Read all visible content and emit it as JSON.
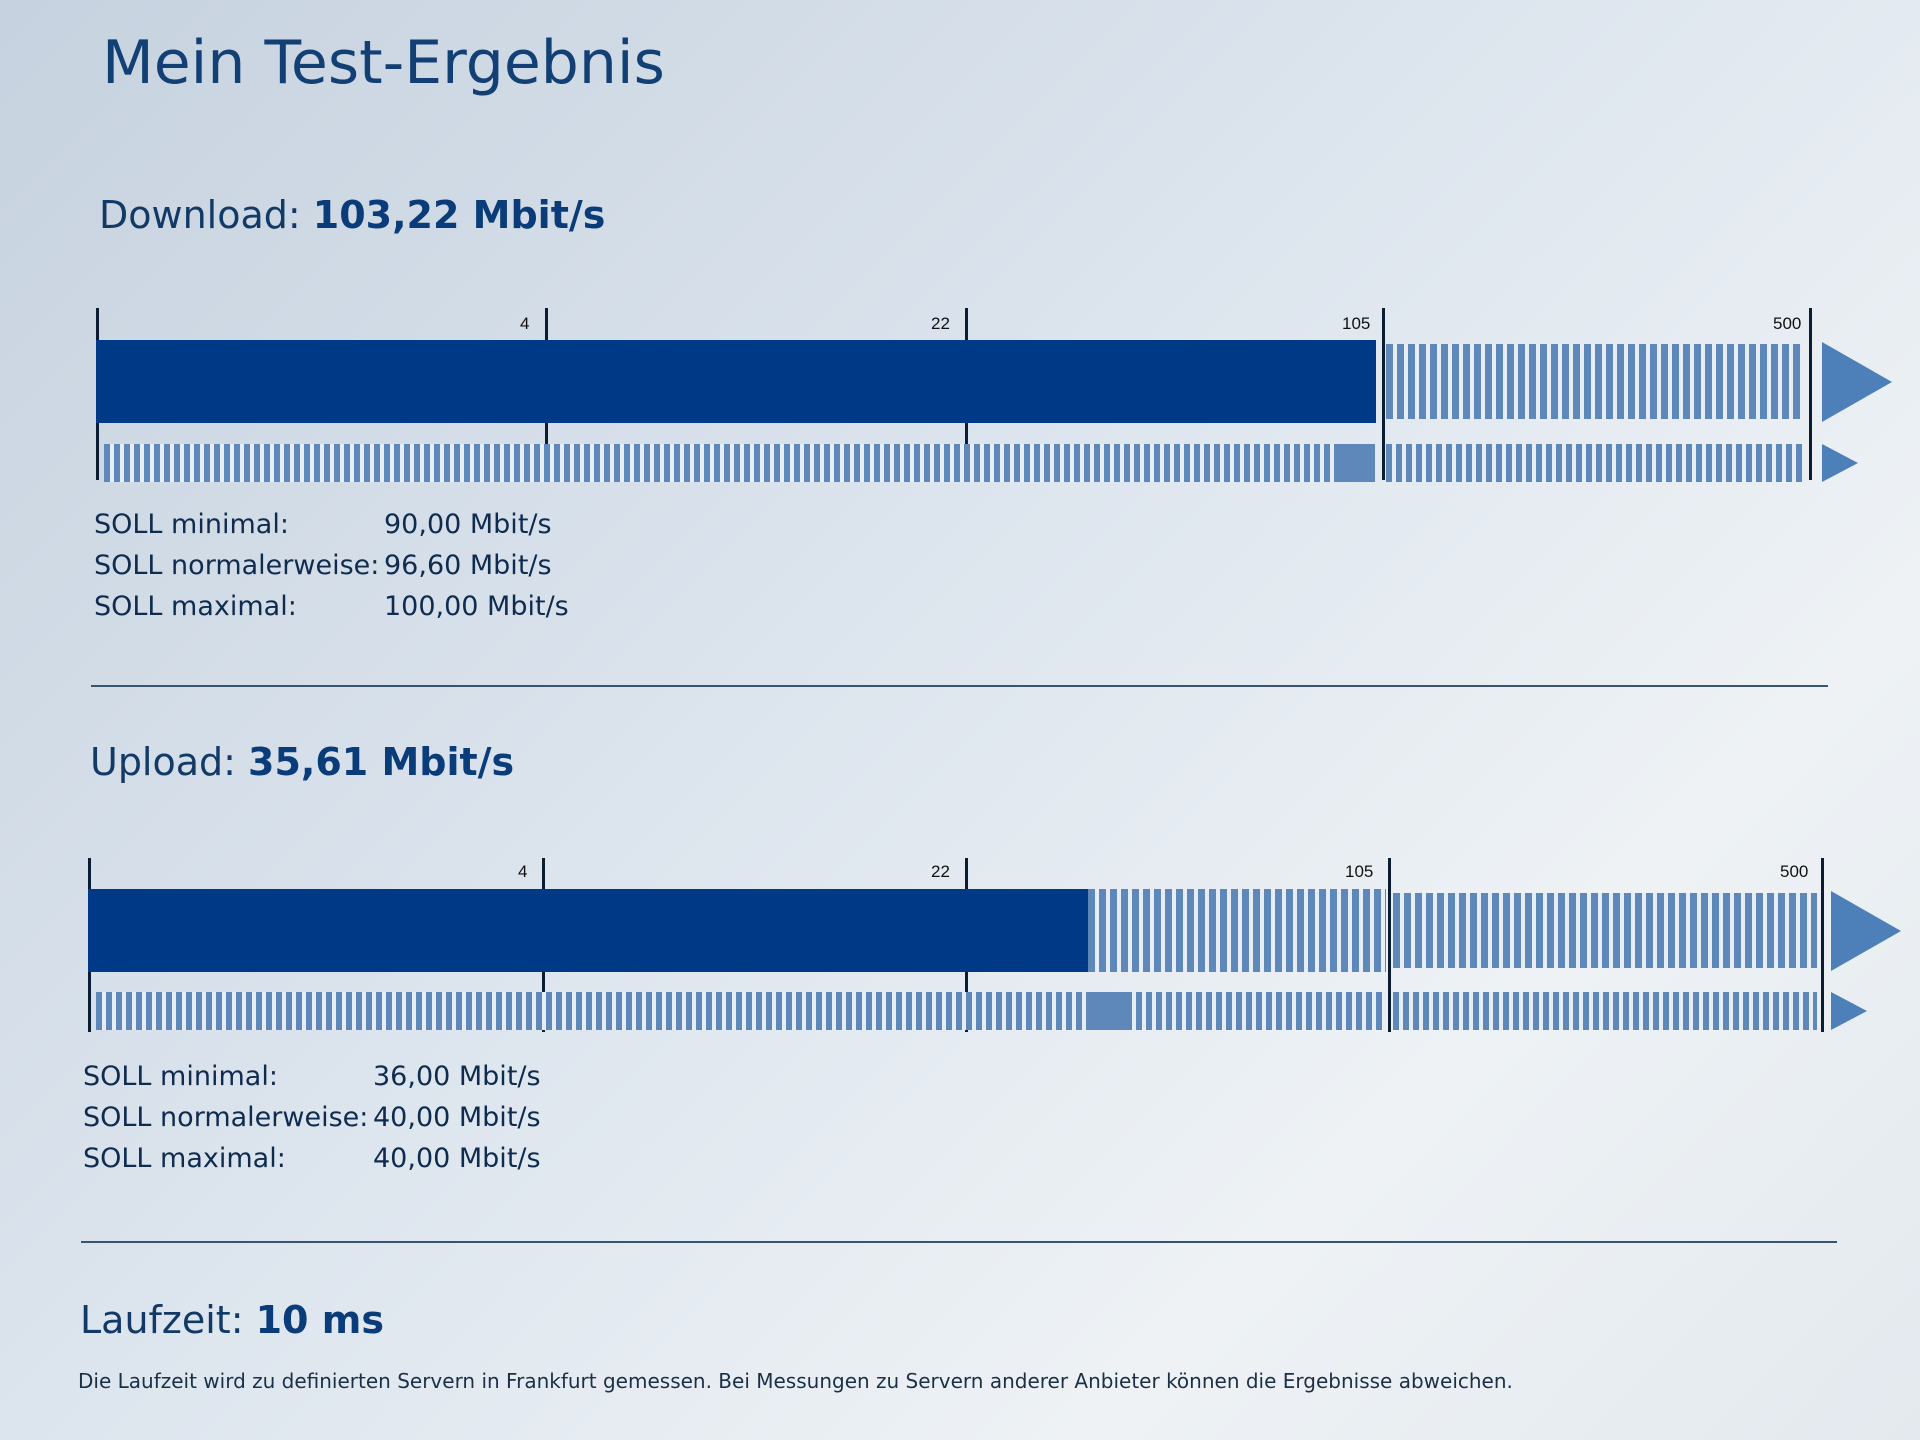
{
  "title": "Mein Test-Ergebnis",
  "download": {
    "label": "Download:",
    "value": "103,22 Mbit/s",
    "measured_mbit": 103.22,
    "ticks": [
      "4",
      "22",
      "105",
      "500"
    ],
    "soll": [
      {
        "label": "SOLL minimal:",
        "value": "90,00 Mbit/s"
      },
      {
        "label": "SOLL normalerweise:",
        "value": "96,60 Mbit/s"
      },
      {
        "label": "SOLL maximal:",
        "value": "100,00 Mbit/s"
      }
    ]
  },
  "upload": {
    "label": "Upload:",
    "value": "35,61 Mbit/s",
    "measured_mbit": 35.61,
    "ticks": [
      "4",
      "22",
      "105",
      "500"
    ],
    "soll": [
      {
        "label": "SOLL minimal:",
        "value": "36,00 Mbit/s"
      },
      {
        "label": "SOLL normalerweise:",
        "value": "40,00 Mbit/s"
      },
      {
        "label": "SOLL maximal:",
        "value": "40,00 Mbit/s"
      }
    ]
  },
  "latency": {
    "label": "Laufzeit:",
    "value": "10 ms",
    "note": "Die Laufzeit wird zu definierten Servern in Frankfurt gemessen. Bei Messungen zu Servern anderer Anbieter können die Ergebnisse abweichen."
  },
  "colors": {
    "bar_filled": "#003a87",
    "bar_striped": "#5e88b9",
    "heading": "#123a66"
  }
}
